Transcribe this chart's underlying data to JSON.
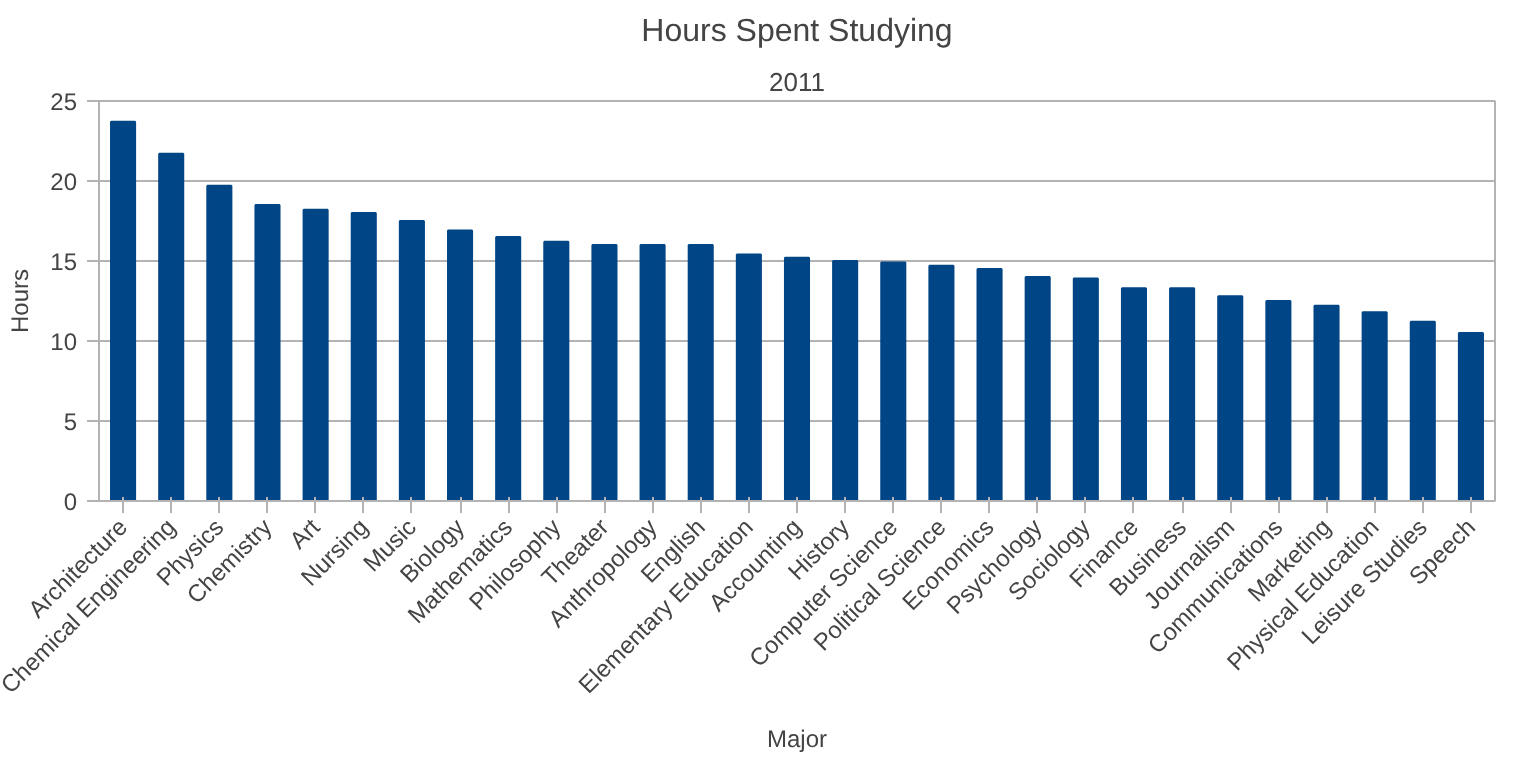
{
  "chart_data": {
    "type": "bar",
    "title": "Hours Spent Studying",
    "subtitle": "2011",
    "xlabel": "Major",
    "ylabel": "Hours",
    "categories": [
      "Architecture",
      "Chemical Engineering",
      "Physics",
      "Chemistry",
      "Art",
      "Nursing",
      "Music",
      "Biology",
      "Mathematics",
      "Philosophy",
      "Theater",
      "Anthropology",
      "English",
      "Elementary Education",
      "Accounting",
      "History",
      "Computer Science",
      "Political Science",
      "Economics",
      "Psychology",
      "Sociology",
      "Finance",
      "Business",
      "Journalism",
      "Communications",
      "Marketing",
      "Physical Education",
      "Leisure Studies",
      "Speech"
    ],
    "values": [
      23.7,
      21.7,
      19.7,
      18.5,
      18.2,
      18.0,
      17.5,
      16.9,
      16.5,
      16.2,
      16.0,
      16.0,
      16.0,
      15.4,
      15.2,
      15.0,
      14.9,
      14.7,
      14.5,
      14.0,
      13.9,
      13.3,
      13.3,
      12.8,
      12.5,
      12.2,
      11.8,
      11.2,
      10.5
    ],
    "color": "#004586",
    "ylim": [
      0,
      25
    ],
    "yticks": [
      0,
      5,
      10,
      15,
      20,
      25
    ],
    "grid": "y"
  }
}
